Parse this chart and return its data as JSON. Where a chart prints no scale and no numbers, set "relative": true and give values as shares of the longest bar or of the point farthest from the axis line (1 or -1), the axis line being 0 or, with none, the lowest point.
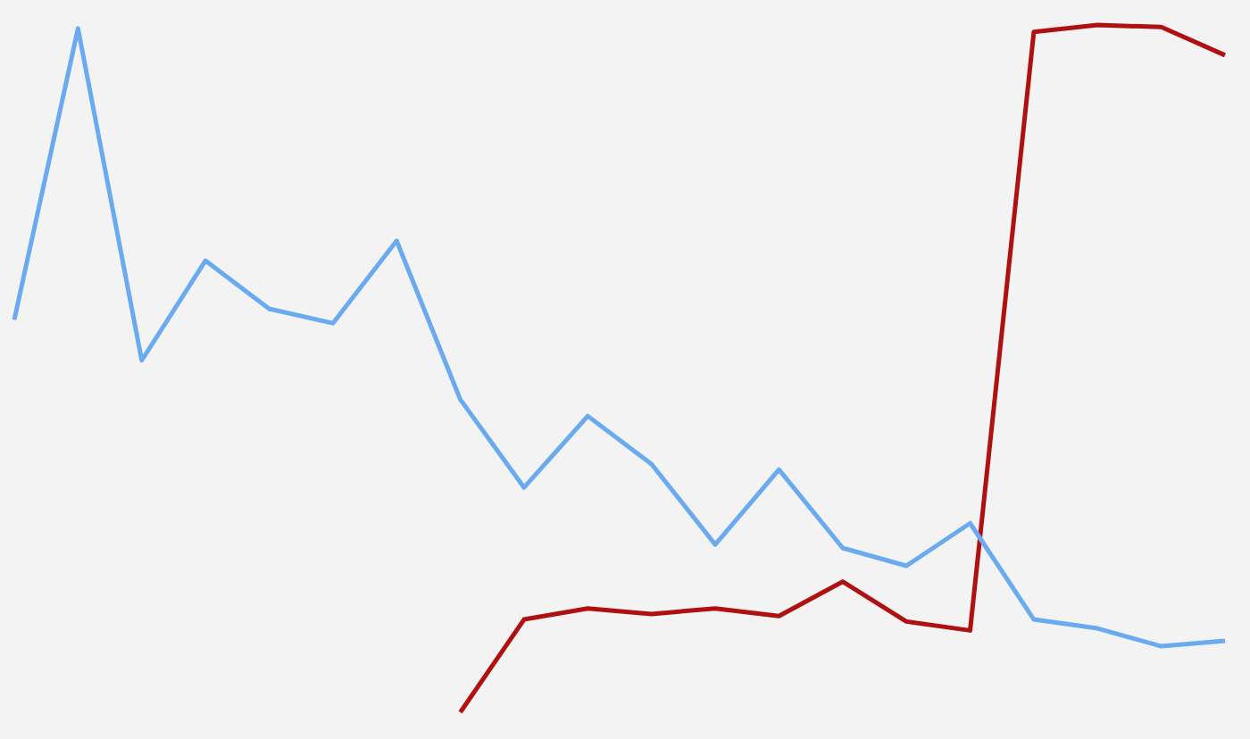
{
  "chart_data": {
    "type": "line",
    "relative": true,
    "categories": [
      null,
      null,
      null,
      null,
      null,
      null,
      null,
      null,
      null,
      null,
      null,
      null,
      null,
      null,
      null,
      null,
      null,
      null,
      null,
      null
    ],
    "series": [
      {
        "color": "#6aaaf0",
        "values": [
          0.571,
          0.995,
          0.512,
          0.657,
          0.587,
          0.566,
          0.686,
          0.455,
          0.327,
          0.431,
          0.361,
          0.244,
          0.353,
          0.239,
          0.213,
          0.275,
          0.135,
          0.122,
          0.096,
          0.104
        ]
      },
      {
        "color": "#b01010",
        "values": [
          null,
          null,
          null,
          null,
          null,
          null,
          null,
          0,
          0.135,
          0.151,
          0.143,
          0.151,
          0.14,
          0.19,
          0.132,
          0.119,
          0.99,
          1,
          0.997,
          0.956
        ]
      }
    ],
    "legend": false,
    "marker": "none",
    "line_style": "solid"
  }
}
